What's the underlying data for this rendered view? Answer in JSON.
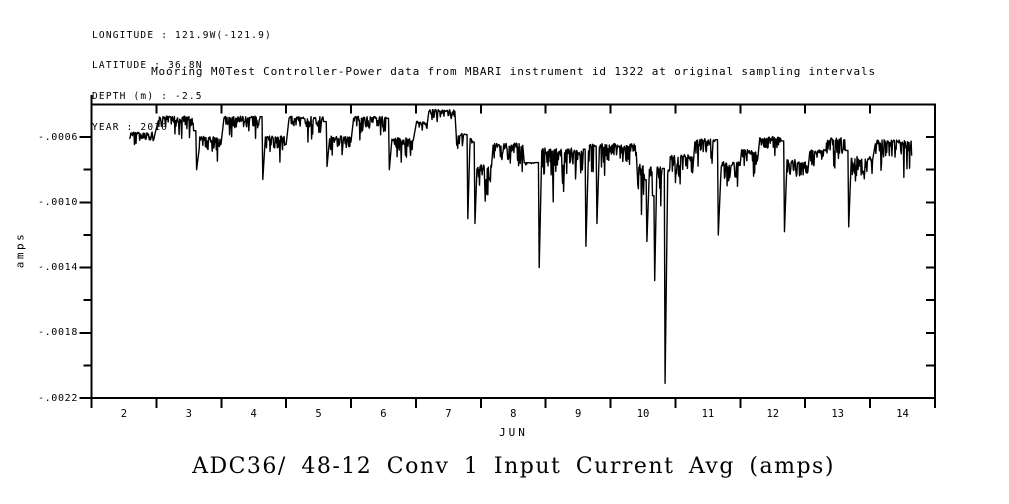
{
  "meta": {
    "lines": [
      "LONGITUDE : 121.9W(-121.9)",
      "LATITUDE : 36.8N",
      "DEPTH (m) : -2.5",
      "YEAR : 2010"
    ]
  },
  "title": "Mooring M0Test Controller-Power data from MBARI instrument id 1322 at original sampling intervals",
  "caption": "ADC36/ 48-12 Conv 1 Input Current Avg (amps)",
  "chart_data": {
    "type": "line",
    "series_name": "ADC36/ 48-12 Conv 1 Input Current Avg",
    "title": "Mooring M0Test Controller-Power data from MBARI instrument id 1322 at original sampling intervals",
    "xlabel": "JUN",
    "ylabel": "amps",
    "x_unit": "day of June 2010",
    "xlim": [
      2,
      15
    ],
    "ylim": [
      -0.0022,
      -0.0004
    ],
    "grid": false,
    "line_color": "#000000",
    "background": "#ffffff",
    "x_axis": {
      "month_label": "JUN",
      "boundary_ticks": [
        2,
        3,
        4,
        5,
        6,
        7,
        8,
        9,
        10,
        11,
        12,
        13,
        14,
        15
      ],
      "top_tick_days": [
        3,
        4,
        5,
        6,
        7,
        8,
        9,
        10,
        11,
        12,
        13,
        14
      ],
      "label_days": [
        2,
        3,
        4,
        5,
        6,
        7,
        8,
        9,
        10,
        11,
        12,
        13,
        14
      ],
      "labels": [
        "2",
        "3",
        "4",
        "5",
        "6",
        "7",
        "8",
        "9",
        "10",
        "11",
        "12",
        "13",
        "14"
      ]
    },
    "y_axis": {
      "axis_label": "amps",
      "major": [
        {
          "v": -0.0006,
          "label": "-.0006"
        },
        {
          "v": -0.001,
          "label": "-.0010"
        },
        {
          "v": -0.0014,
          "label": "-.0014"
        },
        {
          "v": -0.0018,
          "label": "-.0018"
        },
        {
          "v": -0.0022,
          "label": "-.0022"
        }
      ],
      "minor": [
        -0.0008,
        -0.0012,
        -0.0016,
        -0.002
      ],
      "right_ticks": [
        -0.0006,
        -0.0008,
        -0.001,
        -0.0012,
        -0.0014,
        -0.0016,
        -0.0018,
        -0.002
      ]
    },
    "trace_description": "Daily cycle: high plateau ~-0.00046 amps, sharp transition dip near day+0.6, lower noisy band; after Jun 7.8 signal shifts lower (~-0.0007) with dense downward comb spikes; extreme dips at Jun 8.9 (-0.0014) and Jun 10.84 (-0.00211).",
    "trace": [
      {
        "t0": 2.59,
        "t1": 2.98,
        "top": -0.00056,
        "amp": 7e-05
      },
      {
        "t0": 3.03,
        "t1": 3.58,
        "top": -0.00046,
        "amp": 9e-05
      },
      {
        "t": 3.62,
        "v": -0.0008
      },
      {
        "t0": 3.66,
        "t1": 4.0,
        "top": -0.00058,
        "amp": 0.00011
      },
      {
        "t0": 4.04,
        "t1": 4.6,
        "top": -0.00046,
        "amp": 9e-05
      },
      {
        "t": 4.64,
        "v": -0.00086
      },
      {
        "t0": 4.68,
        "t1": 5.0,
        "top": -0.00058,
        "amp": 0.00011
      },
      {
        "t0": 5.04,
        "t1": 5.58,
        "top": -0.00046,
        "amp": 0.0001
      },
      {
        "t": 5.63,
        "v": -0.00078
      },
      {
        "t0": 5.67,
        "t1": 6.0,
        "top": -0.00058,
        "amp": 0.00011
      },
      {
        "t0": 6.04,
        "t1": 6.55,
        "top": -0.00046,
        "amp": 0.0001
      },
      {
        "t": 6.59,
        "v": -0.0008
      },
      {
        "t0": 6.63,
        "t1": 6.97,
        "top": -0.00059,
        "amp": 0.00011
      },
      {
        "t0": 7.01,
        "t1": 7.18,
        "top": -0.00049,
        "amp": 8e-05
      },
      {
        "t0": 7.2,
        "t1": 7.6,
        "top": -0.00042,
        "amp": 8e-05
      },
      {
        "t0": 7.62,
        "t1": 7.76,
        "top": -0.00056,
        "amp": 0.0001
      },
      {
        "t": 7.8,
        "v": -0.0011
      },
      {
        "t0": 7.83,
        "t1": 7.88,
        "top": -0.00058,
        "amp": 8e-05
      },
      {
        "t": 7.91,
        "v": -0.00113
      },
      {
        "t0": 7.94,
        "t1": 8.17,
        "top": -0.00074,
        "amp": 0.0002
      },
      {
        "t0": 8.19,
        "t1": 8.65,
        "top": -0.00062,
        "amp": 0.00014
      },
      {
        "t0": 8.67,
        "t1": 8.84,
        "top": -0.000755,
        "amp": 1e-05
      },
      {
        "t": 8.9,
        "v": -0.0014
      },
      {
        "t0": 8.94,
        "t1": 9.58,
        "top": -0.00064,
        "amp": 0.00022
      },
      {
        "t": 9.62,
        "v": -0.00127
      },
      {
        "t0": 9.66,
        "t1": 9.76,
        "top": -0.00062,
        "amp": 0.00016
      },
      {
        "t": 9.79,
        "v": -0.00113
      },
      {
        "t0": 9.82,
        "t1": 10.4,
        "top": -0.00062,
        "amp": 0.00016
      },
      {
        "t0": 10.42,
        "t1": 10.53,
        "top": -0.00074,
        "amp": 0.0002
      },
      {
        "t": 10.56,
        "v": -0.00124
      },
      {
        "t0": 10.59,
        "t1": 10.65,
        "top": -0.00074,
        "amp": 0.0002
      },
      {
        "t": 10.68,
        "v": -0.00148
      },
      {
        "t0": 10.71,
        "t1": 10.8,
        "top": -0.00076,
        "amp": 0.00018
      },
      {
        "t": 10.84,
        "v": -0.00211
      },
      {
        "t0": 10.88,
        "t1": 11.27,
        "top": -0.00068,
        "amp": 0.00018
      },
      {
        "t0": 11.3,
        "t1": 11.62,
        "top": -0.00059,
        "amp": 0.00013
      },
      {
        "t": 11.66,
        "v": -0.0012
      },
      {
        "t0": 11.7,
        "t1": 12.0,
        "top": -0.00073,
        "amp": 0.00016
      },
      {
        "t0": 12.02,
        "t1": 12.27,
        "top": -0.00066,
        "amp": 0.00014
      },
      {
        "t0": 12.3,
        "t1": 12.63,
        "top": -0.00058,
        "amp": 0.00012
      },
      {
        "t": 12.68,
        "v": -0.00118
      },
      {
        "t0": 12.72,
        "t1": 13.04,
        "top": -0.00072,
        "amp": 0.00015
      },
      {
        "t0": 13.07,
        "t1": 13.29,
        "top": -0.00066,
        "amp": 0.00013
      },
      {
        "t0": 13.32,
        "t1": 13.62,
        "top": -0.00059,
        "amp": 0.00012
      },
      {
        "t": 13.67,
        "v": -0.00115
      },
      {
        "t0": 13.71,
        "t1": 14.04,
        "top": -0.0007,
        "amp": 0.00016
      },
      {
        "t0": 14.08,
        "t1": 14.64,
        "top": -0.0006,
        "amp": 0.00014
      }
    ]
  }
}
